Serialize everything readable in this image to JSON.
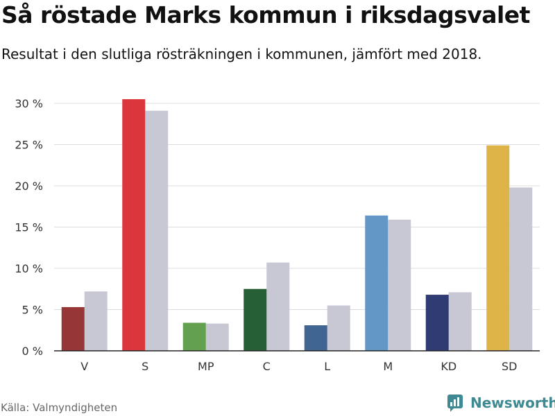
{
  "header": {
    "title": "Så röstade Marks kommun i riksdagsvalet",
    "subtitle": "Resultat i den slutliga rösträkningen i kommunen, jämfört med 2018."
  },
  "footer": {
    "source": "Källa: Valmyndigheten",
    "brand": "Newsworthy",
    "brand_icon": "newsworthy-logo-icon",
    "brand_color": "#3f8a92"
  },
  "chart_data": {
    "type": "bar",
    "categories": [
      "V",
      "S",
      "MP",
      "C",
      "L",
      "M",
      "KD",
      "SD"
    ],
    "series": [
      {
        "values": [
          5.3,
          30.5,
          3.4,
          7.5,
          3.1,
          16.4,
          6.8,
          24.9
        ],
        "colors": [
          "#963636",
          "#dc363d",
          "#63a050",
          "#265f36",
          "#416593",
          "#6397c6",
          "#2f3b72",
          "#deb348"
        ]
      },
      {
        "values": [
          7.2,
          29.1,
          3.3,
          10.7,
          5.5,
          15.9,
          7.1,
          19.8
        ],
        "color": "#c8c8d4"
      }
    ],
    "yticks": [
      "0 %",
      "5 %",
      "10 %",
      "15 %",
      "20 %",
      "25 %",
      "30 %"
    ],
    "ylim": [
      0,
      30
    ],
    "grid": true,
    "xlabel": "",
    "ylabel": ""
  }
}
